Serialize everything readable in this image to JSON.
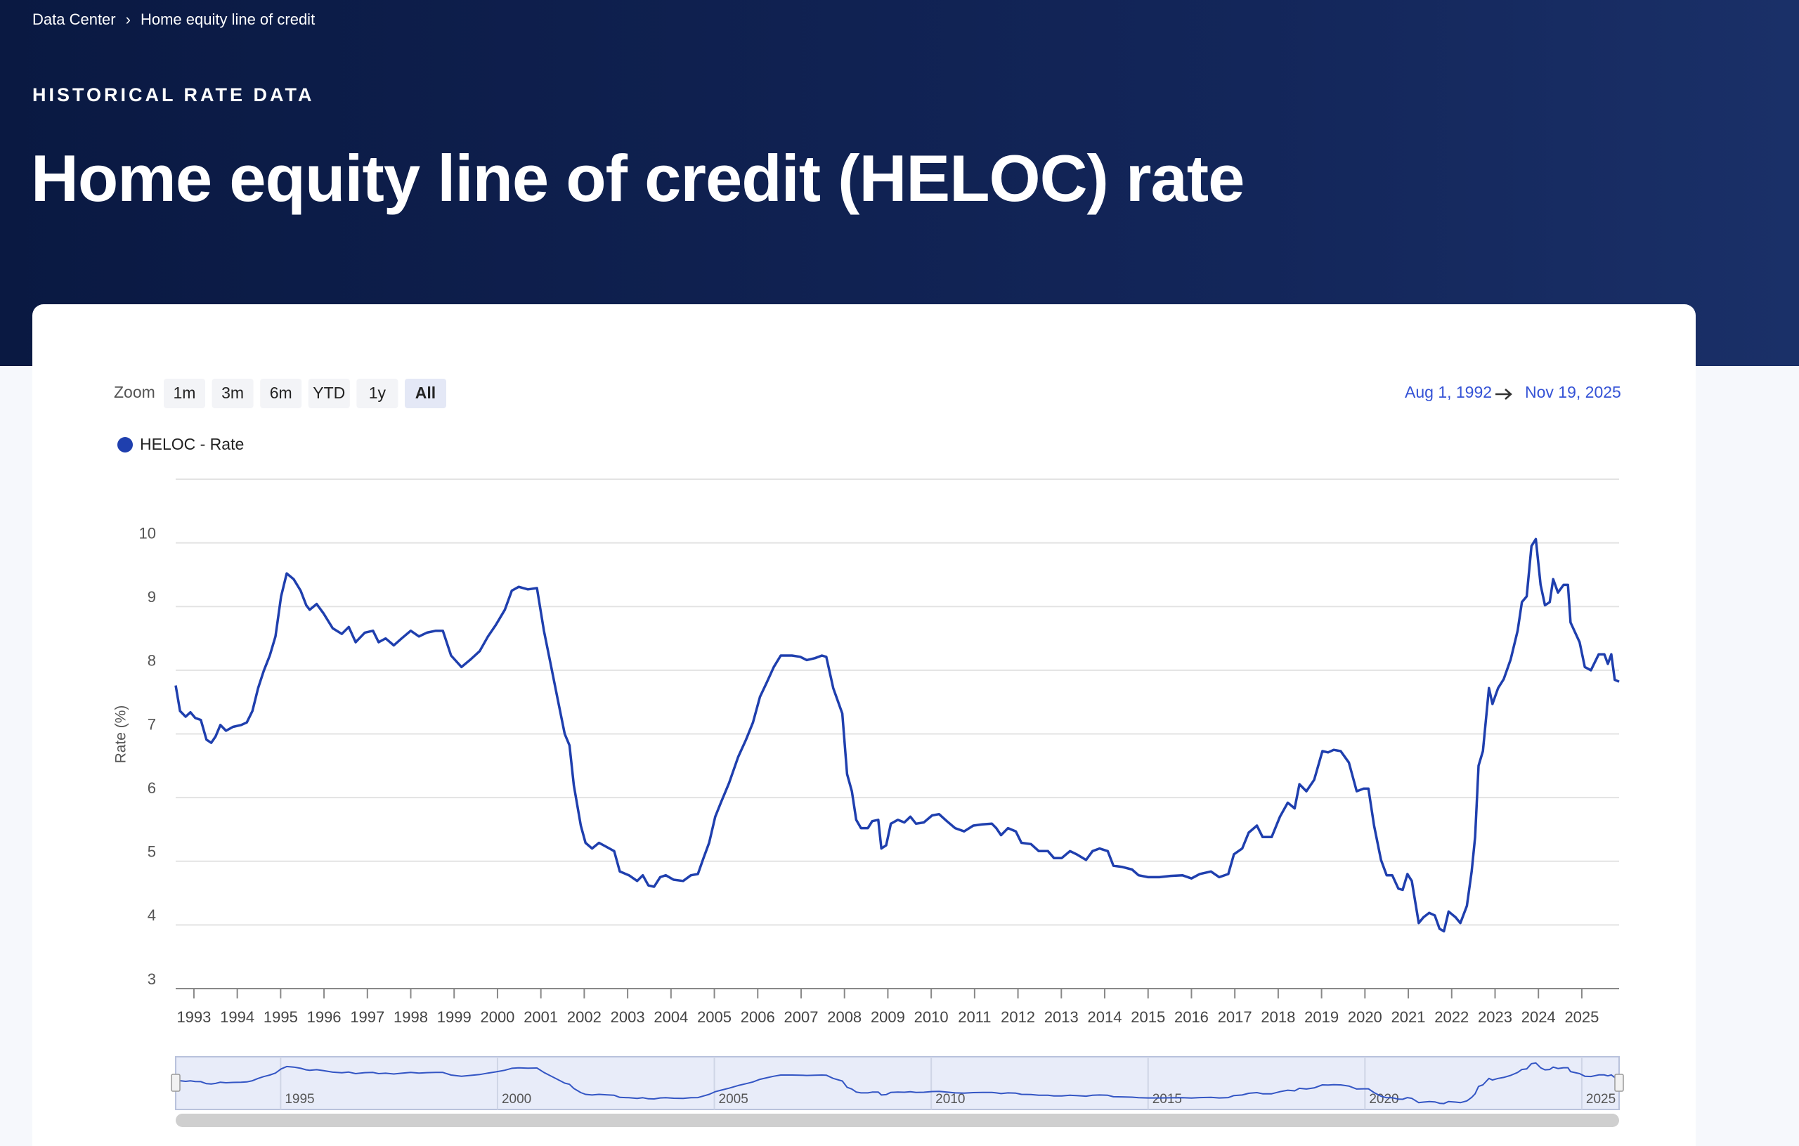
{
  "breadcrumb": {
    "items": [
      "Data Center",
      "Home equity line of credit"
    ],
    "separator": "›"
  },
  "eyebrow": "HISTORICAL RATE DATA",
  "title": "Home equity line of credit (HELOC) rate",
  "zoom": {
    "label": "Zoom",
    "buttons": [
      "1m",
      "3m",
      "6m",
      "YTD",
      "1y",
      "All"
    ],
    "active": "All"
  },
  "range": {
    "from": "Aug 1, 1992",
    "to": "Nov 19, 2025"
  },
  "chart_data": {
    "type": "line",
    "ylabel": "Rate (%)",
    "x": [
      1992.58,
      1992.68,
      1992.81,
      1992.92,
      1993.03,
      1993.16,
      1993.29,
      1993.4,
      1993.5,
      1993.61,
      1993.74,
      1993.9,
      1994.09,
      1994.22,
      1994.35,
      1994.48,
      1994.61,
      1994.75,
      1994.88,
      1995.01,
      1995.14,
      1995.3,
      1995.46,
      1995.59,
      1995.67,
      1995.83,
      1995.99,
      1996.2,
      1996.41,
      1996.57,
      1996.73,
      1996.94,
      1997.13,
      1997.26,
      1997.42,
      1997.61,
      1997.79,
      1998.0,
      1998.19,
      1998.37,
      1998.58,
      1998.74,
      1998.93,
      1999.17,
      1999.38,
      1999.59,
      1999.78,
      1999.96,
      2000.17,
      2000.33,
      2000.49,
      2000.7,
      2000.91,
      2001.07,
      2001.23,
      2001.39,
      2001.55,
      2001.66,
      2001.76,
      2001.92,
      2002.03,
      2002.18,
      2002.34,
      2002.5,
      2002.69,
      2002.82,
      2003.03,
      2003.22,
      2003.35,
      2003.48,
      2003.61,
      2003.75,
      2003.88,
      2004.06,
      2004.28,
      2004.46,
      2004.62,
      2004.75,
      2004.88,
      2005.02,
      2005.15,
      2005.34,
      2005.55,
      2005.73,
      2005.89,
      2006.05,
      2006.21,
      2006.37,
      2006.53,
      2006.79,
      2006.98,
      2007.13,
      2007.32,
      2007.48,
      2007.58,
      2007.74,
      2007.95,
      2008.06,
      2008.17,
      2008.27,
      2008.38,
      2008.54,
      2008.64,
      2008.78,
      2008.85,
      2008.96,
      2009.07,
      2009.23,
      2009.38,
      2009.52,
      2009.65,
      2009.83,
      2010.02,
      2010.18,
      2010.36,
      2010.55,
      2010.76,
      2010.97,
      2011.18,
      2011.4,
      2011.5,
      2011.61,
      2011.77,
      2011.95,
      2012.08,
      2012.3,
      2012.48,
      2012.69,
      2012.83,
      2013.01,
      2013.2,
      2013.35,
      2013.57,
      2013.72,
      2013.88,
      2014.07,
      2014.2,
      2014.41,
      2014.63,
      2014.78,
      2015.0,
      2015.26,
      2015.52,
      2015.79,
      2016.0,
      2016.19,
      2016.45,
      2016.64,
      2016.85,
      2016.98,
      2017.17,
      2017.32,
      2017.51,
      2017.64,
      2017.85,
      2018.04,
      2018.22,
      2018.38,
      2018.49,
      2018.65,
      2018.83,
      2019.02,
      2019.15,
      2019.28,
      2019.44,
      2019.63,
      2019.81,
      2019.97,
      2020.08,
      2020.21,
      2020.37,
      2020.5,
      2020.63,
      2020.77,
      2020.87,
      2020.98,
      2021.08,
      2021.24,
      2021.35,
      2021.48,
      2021.61,
      2021.72,
      2021.82,
      2021.93,
      2022.09,
      2022.2,
      2022.35,
      2022.46,
      2022.54,
      2022.62,
      2022.72,
      2022.86,
      2022.94,
      2023.07,
      2023.2,
      2023.36,
      2023.52,
      2023.62,
      2023.73,
      2023.84,
      2023.94,
      2024.05,
      2024.15,
      2024.26,
      2024.34,
      2024.45,
      2024.58,
      2024.68,
      2024.74,
      2024.95,
      2025.07,
      2025.21,
      2025.39,
      2025.52,
      2025.6,
      2025.68,
      2025.76,
      2025.86
    ],
    "series": [
      {
        "name": "HELOC - Rate",
        "color": "#1f3fae",
        "values": [
          7.76,
          7.36,
          7.27,
          7.34,
          7.25,
          7.22,
          6.91,
          6.86,
          6.96,
          7.14,
          7.05,
          7.11,
          7.14,
          7.18,
          7.36,
          7.72,
          7.99,
          8.23,
          8.53,
          9.16,
          9.52,
          9.43,
          9.25,
          9.02,
          8.95,
          9.04,
          8.89,
          8.66,
          8.57,
          8.68,
          8.44,
          8.59,
          8.62,
          8.44,
          8.5,
          8.39,
          8.5,
          8.62,
          8.53,
          8.59,
          8.62,
          8.62,
          8.23,
          8.05,
          8.17,
          8.3,
          8.53,
          8.71,
          8.95,
          9.25,
          9.31,
          9.27,
          9.29,
          8.62,
          8.08,
          7.54,
          7.0,
          6.82,
          6.19,
          5.56,
          5.29,
          5.2,
          5.29,
          5.23,
          5.16,
          4.84,
          4.78,
          4.69,
          4.78,
          4.62,
          4.6,
          4.75,
          4.78,
          4.71,
          4.69,
          4.78,
          4.8,
          5.05,
          5.29,
          5.7,
          5.92,
          6.23,
          6.64,
          6.91,
          7.18,
          7.58,
          7.81,
          8.05,
          8.23,
          8.23,
          8.21,
          8.16,
          8.19,
          8.23,
          8.21,
          7.72,
          7.32,
          6.37,
          6.1,
          5.65,
          5.52,
          5.52,
          5.63,
          5.65,
          5.2,
          5.25,
          5.59,
          5.65,
          5.61,
          5.7,
          5.59,
          5.61,
          5.72,
          5.74,
          5.63,
          5.52,
          5.47,
          5.56,
          5.58,
          5.59,
          5.52,
          5.41,
          5.52,
          5.47,
          5.29,
          5.27,
          5.16,
          5.16,
          5.05,
          5.05,
          5.16,
          5.11,
          5.02,
          5.16,
          5.2,
          5.16,
          4.93,
          4.91,
          4.87,
          4.78,
          4.75,
          4.75,
          4.77,
          4.78,
          4.73,
          4.8,
          4.84,
          4.75,
          4.8,
          5.11,
          5.2,
          5.45,
          5.56,
          5.38,
          5.38,
          5.7,
          5.92,
          5.83,
          6.21,
          6.1,
          6.28,
          6.73,
          6.71,
          6.75,
          6.73,
          6.55,
          6.1,
          6.14,
          6.14,
          5.56,
          5.02,
          4.78,
          4.78,
          4.57,
          4.55,
          4.8,
          4.69,
          4.03,
          4.12,
          4.19,
          4.15,
          3.94,
          3.9,
          4.21,
          4.12,
          4.03,
          4.3,
          4.84,
          5.38,
          6.5,
          6.73,
          7.72,
          7.47,
          7.72,
          7.86,
          8.17,
          8.62,
          9.07,
          9.16,
          9.95,
          10.06,
          9.34,
          9.02,
          9.07,
          9.43,
          9.22,
          9.34,
          9.34,
          8.75,
          8.44,
          8.05,
          8.0,
          8.25,
          8.25,
          8.1,
          8.25,
          7.85,
          7.82
        ]
      }
    ],
    "xlim": [
      1992.58,
      2025.86
    ],
    "ylim": [
      3,
      11
    ],
    "xticks": [
      1993,
      1994,
      1995,
      1996,
      1997,
      1998,
      1999,
      2000,
      2001,
      2002,
      2003,
      2004,
      2005,
      2006,
      2007,
      2008,
      2009,
      2010,
      2011,
      2012,
      2013,
      2014,
      2015,
      2016,
      2017,
      2018,
      2019,
      2020,
      2021,
      2022,
      2023,
      2024,
      2025
    ],
    "yticks": [
      3,
      4,
      5,
      6,
      7,
      8,
      9,
      10
    ],
    "grid": true,
    "navigator": {
      "xticks": [
        1995,
        2000,
        2005,
        2010,
        2015,
        2020,
        2025
      ]
    }
  }
}
